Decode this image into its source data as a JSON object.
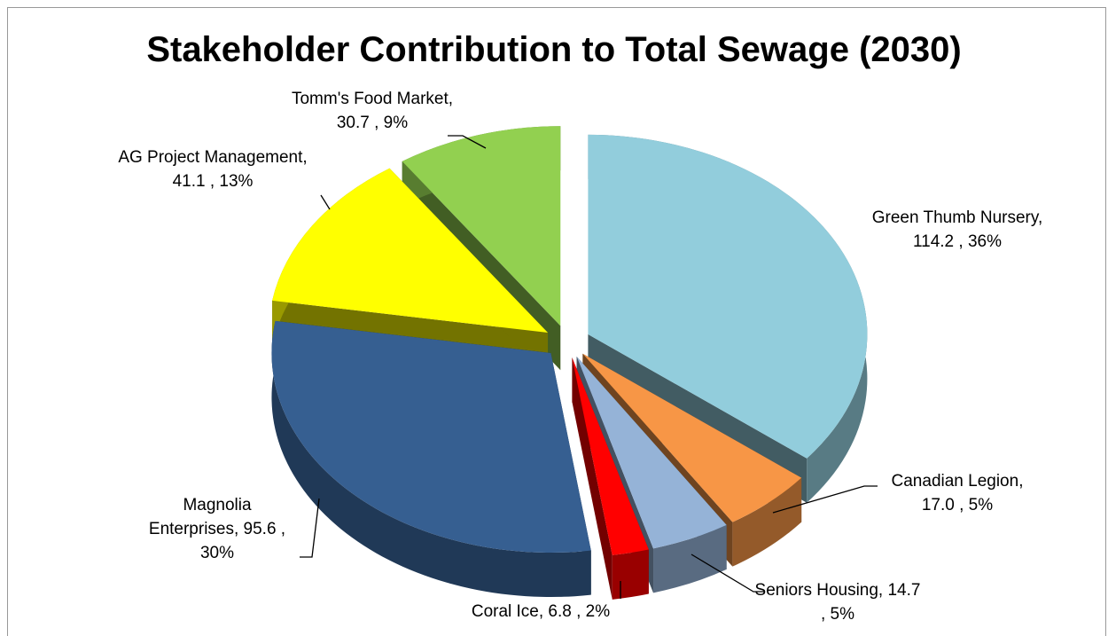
{
  "chart_data": {
    "type": "pie3d",
    "title": "Stakeholder Contribution to Total Sewage (2030)",
    "values": [
      114.2,
      17.0,
      14.7,
      6.8,
      95.6,
      41.1,
      30.7
    ],
    "value_labels": [
      "Green Thumb Nursery, 114.2 , 36%",
      "Canadian Legion, 17.0 , 5%",
      "Seniors Housing, 14.7 , 5%",
      "Coral Ice, 6.8 , 2%",
      "Magnolia Enterprises, 95.6 , 30%",
      "AG Project Management, 41.1 , 13%",
      "Tomm's Food Market, 30.7 , 9%"
    ],
    "colors": [
      "#92cddc",
      "#f79646",
      "#95b3d7",
      "#ff0000",
      "#365f91",
      "#ffff00",
      "#92d050"
    ]
  }
}
